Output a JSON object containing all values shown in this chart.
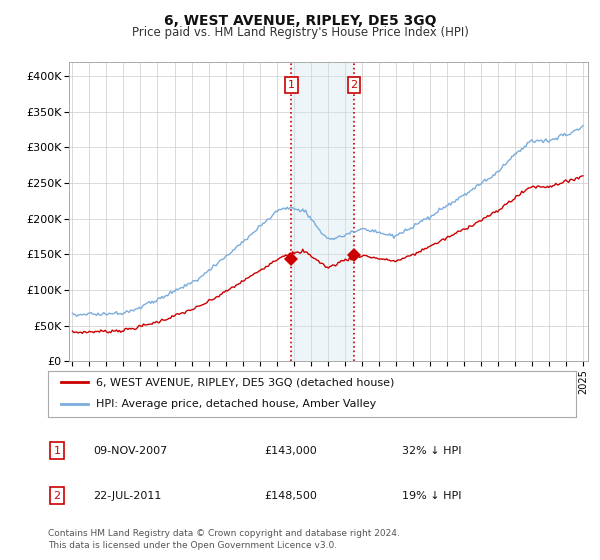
{
  "title": "6, WEST AVENUE, RIPLEY, DE5 3GQ",
  "subtitle": "Price paid vs. HM Land Registry's House Price Index (HPI)",
  "ylim": [
    0,
    420000
  ],
  "yticks": [
    0,
    50000,
    100000,
    150000,
    200000,
    250000,
    300000,
    350000,
    400000
  ],
  "ytick_labels": [
    "£0",
    "£50K",
    "£100K",
    "£150K",
    "£200K",
    "£250K",
    "£300K",
    "£350K",
    "£400K"
  ],
  "background_color": "#ffffff",
  "legend_entries": [
    "6, WEST AVENUE, RIPLEY, DE5 3GQ (detached house)",
    "HPI: Average price, detached house, Amber Valley"
  ],
  "legend_colors": [
    "#cc0000",
    "#7aaddb"
  ],
  "table_rows": [
    [
      "1",
      "09-NOV-2007",
      "£143,000",
      "32% ↓ HPI"
    ],
    [
      "2",
      "22-JUL-2011",
      "£148,500",
      "19% ↓ HPI"
    ]
  ],
  "footnote": "Contains HM Land Registry data © Crown copyright and database right 2024.\nThis data is licensed under the Open Government Licence v3.0.",
  "hpi_color": "#7aaddb",
  "price_color": "#cc0000",
  "vline_color": "#cc0000",
  "shade_color": "#d0e4f0",
  "grid_color": "#cccccc",
  "marker1_year": 2007.85,
  "marker1_price": 143000,
  "marker2_year": 2011.54,
  "marker2_price": 148500
}
